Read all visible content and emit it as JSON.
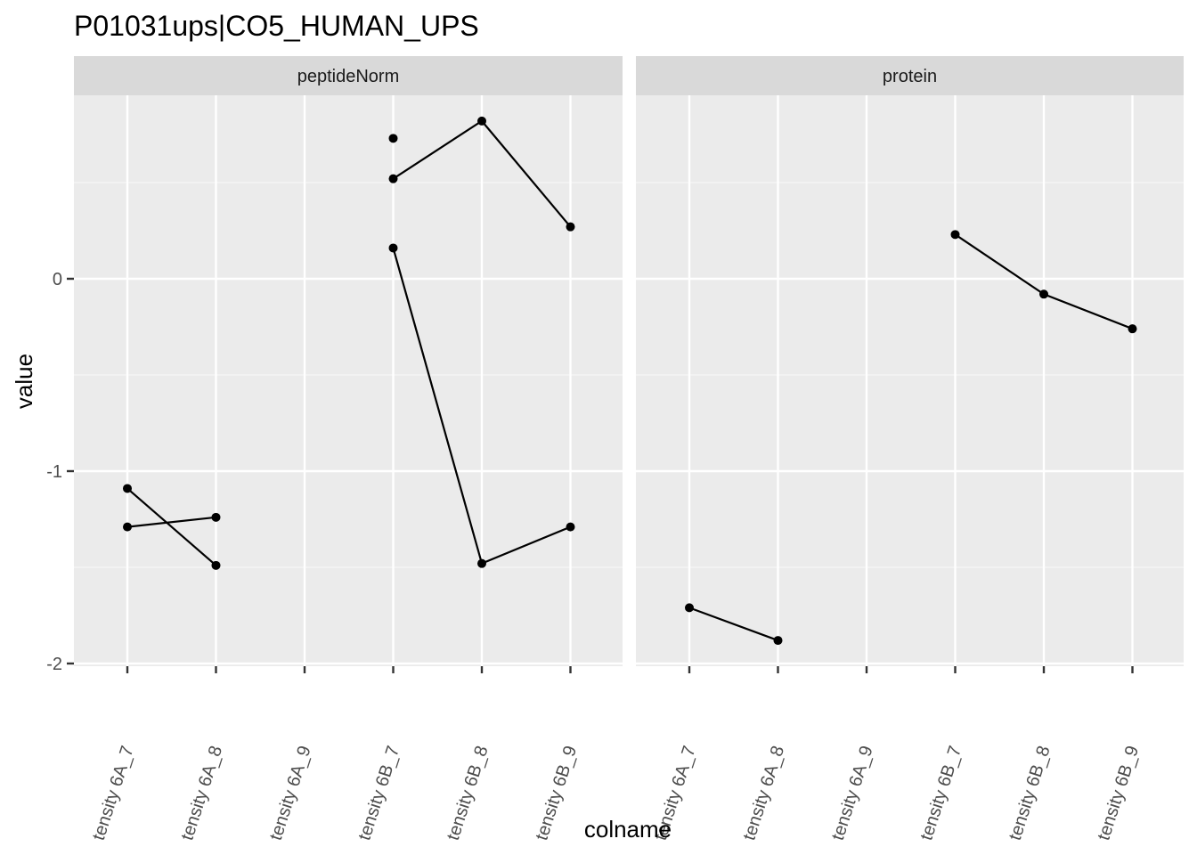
{
  "chart_data": {
    "type": "line",
    "title": "P01031ups|CO5_HUMAN_UPS",
    "xlabel": "colname",
    "ylabel": "value",
    "categories": [
      "tensity 6A_7",
      "tensity 6A_8",
      "tensity 6A_9",
      "tensity 6B_7",
      "tensity 6B_8",
      "tensity 6B_9"
    ],
    "ylim": [
      -2.0,
      0.95
    ],
    "yticks": [
      0,
      -1,
      -2
    ],
    "ytick_labels": [
      "0",
      "-1",
      "-2"
    ],
    "grid": true,
    "panels": [
      {
        "label": "peptideNorm",
        "lines": [
          {
            "points": [
              {
                "x": "tensity 6A_7",
                "y": -1.09
              },
              {
                "x": "tensity 6A_8",
                "y": -1.49
              }
            ]
          },
          {
            "points": [
              {
                "x": "tensity 6A_7",
                "y": -1.29
              },
              {
                "x": "tensity 6A_8",
                "y": -1.24
              }
            ]
          },
          {
            "points": [
              {
                "x": "tensity 6B_7",
                "y": 0.52
              },
              {
                "x": "tensity 6B_8",
                "y": 0.82
              },
              {
                "x": "tensity 6B_9",
                "y": 0.27
              }
            ]
          },
          {
            "points": [
              {
                "x": "tensity 6B_7",
                "y": 0.16
              },
              {
                "x": "tensity 6B_8",
                "y": -1.48
              },
              {
                "x": "tensity 6B_9",
                "y": -1.29
              }
            ]
          },
          {
            "points": [
              {
                "x": "tensity 6B_7",
                "y": 0.73
              }
            ]
          }
        ]
      },
      {
        "label": "protein",
        "lines": [
          {
            "points": [
              {
                "x": "tensity 6A_7",
                "y": -1.71
              },
              {
                "x": "tensity 6A_8",
                "y": -1.88
              }
            ]
          },
          {
            "points": [
              {
                "x": "tensity 6B_7",
                "y": 0.23
              },
              {
                "x": "tensity 6B_8",
                "y": -0.08
              },
              {
                "x": "tensity 6B_9",
                "y": -0.26
              }
            ]
          }
        ]
      }
    ]
  }
}
